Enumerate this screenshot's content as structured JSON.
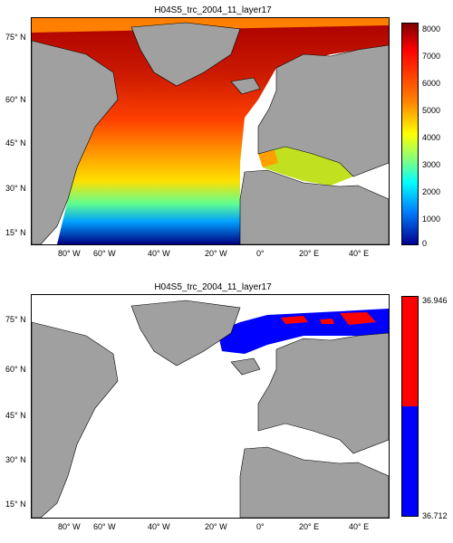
{
  "panels": [
    {
      "title": "H04S5_trc_2004_11_layer17",
      "colorbar": {
        "colormap": "jet",
        "ticks": [
          "8000",
          "7000",
          "6000",
          "5000",
          "4000",
          "3000",
          "2000",
          "1000",
          "0"
        ],
        "range": [
          0,
          8000
        ]
      },
      "field_description": "high values in subpolar and central North Atlantic, decreasing to low values in the tropical eastern Atlantic; mid-range values in the Mediterranean"
    },
    {
      "title": "H04S5_trc_2004_11_layer17",
      "colorbar": {
        "colormap": "two-color",
        "top_label": "36.946",
        "bottom_label": "36.712",
        "colors": [
          "#ff0000",
          "#0000ff"
        ]
      },
      "field_description": "values only north of Norway and in the Barents Sea region; blue band with red patches"
    }
  ],
  "x_ticks": [
    "80° W",
    "60° W",
    "40° W",
    "20° W",
    "0°",
    "20° E",
    "40° E"
  ],
  "y_ticks": [
    "75° N",
    "60° N",
    "45° N",
    "30° N",
    "15° N"
  ],
  "colors": {
    "land": "#a0a0a0",
    "ocean_nodata": "#ffffff",
    "coast": "#000000"
  }
}
